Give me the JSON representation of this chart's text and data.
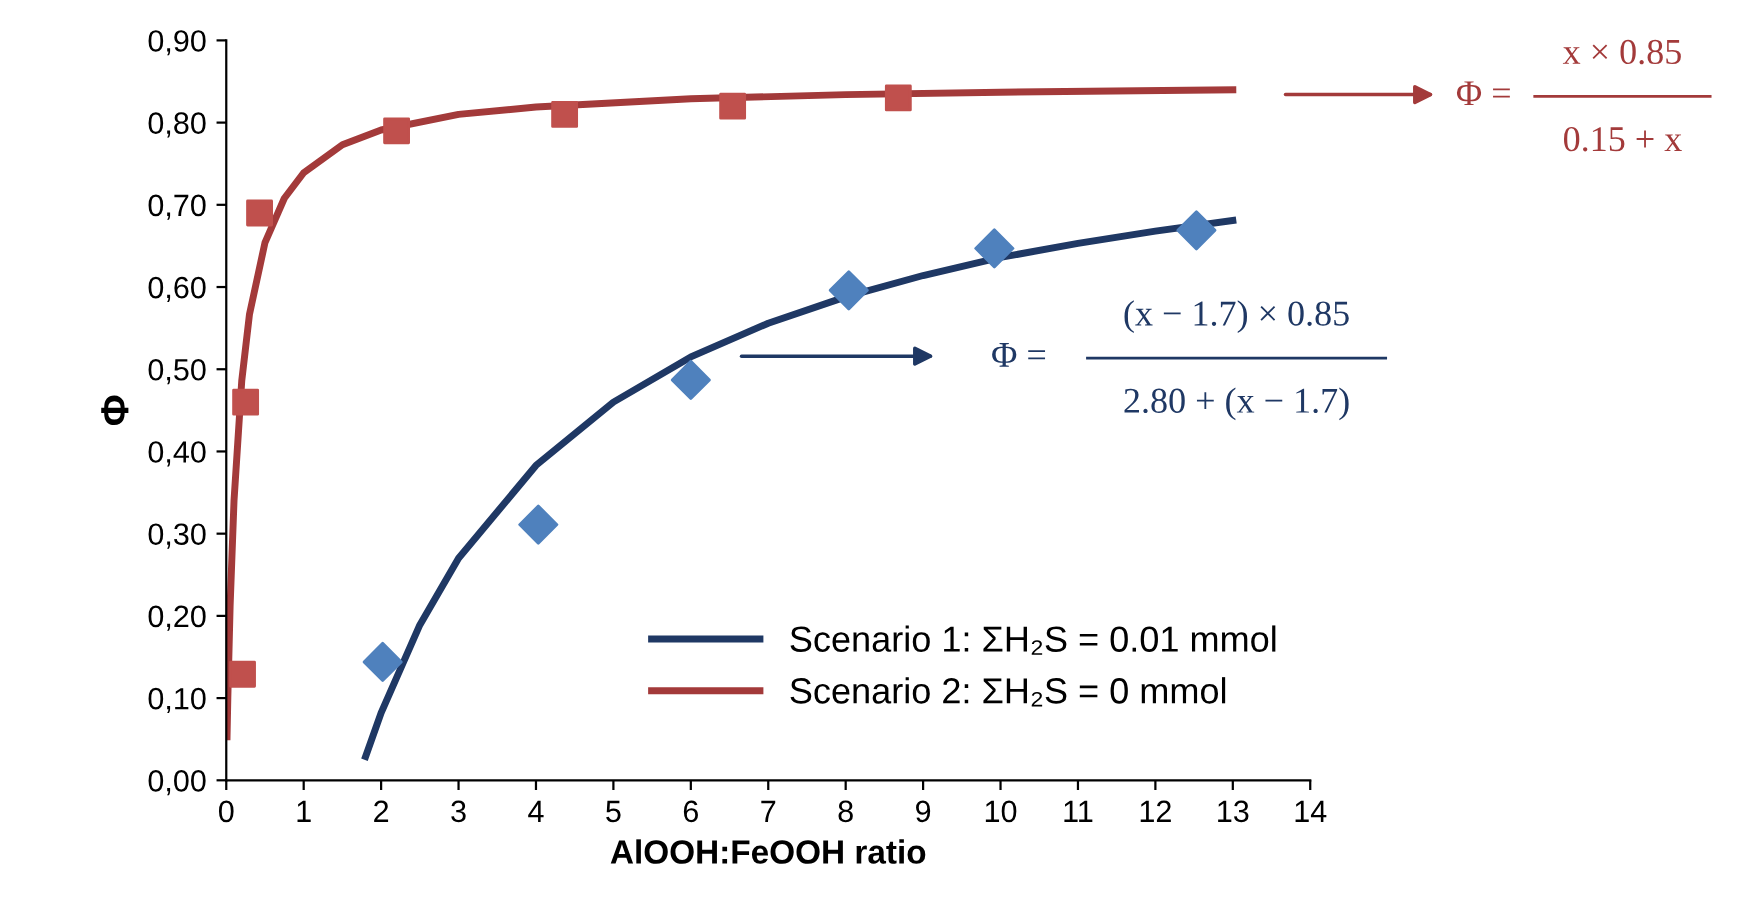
{
  "chart_data": {
    "type": "scatter",
    "xlabel": "AlOOH:FeOOH ratio",
    "ylabel": "Φ",
    "xlim": [
      0,
      14
    ],
    "xticks": [
      0,
      1,
      2,
      3,
      4,
      5,
      6,
      7,
      8,
      9,
      10,
      11,
      12,
      13,
      14
    ],
    "ylim": [
      0,
      0.9
    ],
    "yticks": [
      {
        "value": 0,
        "label": "0,00"
      },
      {
        "value": 0.1,
        "label": "0,10"
      },
      {
        "value": 0.2,
        "label": "0,20"
      },
      {
        "value": 0.3,
        "label": "0,30"
      },
      {
        "value": 0.4,
        "label": "0,40"
      },
      {
        "value": 0.5,
        "label": "0,50"
      },
      {
        "value": 0.6,
        "label": "0,60"
      },
      {
        "value": 0.7,
        "label": "0,70"
      },
      {
        "value": 0.8,
        "label": "0,80"
      },
      {
        "value": 0.9,
        "label": "0,90"
      }
    ],
    "grid": false,
    "legend": "lower right",
    "series": [
      {
        "type": "line",
        "name": "Scenario 1: ΣH₂S = 0.01 mmol",
        "color": "#1f3864",
        "marker": "none",
        "x": [
          1.8,
          2,
          2.5,
          3,
          4,
          5,
          6,
          7,
          8,
          9,
          10,
          11,
          12,
          13
        ],
        "values": [
          0.029,
          0.082,
          0.189,
          0.27,
          0.383,
          0.46,
          0.515,
          0.556,
          0.588,
          0.614,
          0.636,
          0.653,
          0.668,
          0.681
        ]
      },
      {
        "type": "line",
        "name": "Scenario 2: ΣH₂S = 0 mmol",
        "color": "#a33a3a",
        "marker": "none",
        "x": [
          0.01,
          0.02,
          0.05,
          0.1,
          0.2,
          0.3,
          0.5,
          0.75,
          1,
          1.5,
          2,
          3,
          4,
          6,
          8,
          10,
          13
        ],
        "values": [
          0.053,
          0.1,
          0.213,
          0.34,
          0.486,
          0.567,
          0.654,
          0.708,
          0.739,
          0.773,
          0.791,
          0.81,
          0.819,
          0.829,
          0.834,
          0.837,
          0.84
        ]
      },
      {
        "color": "#4f81bd",
        "marker": "diamond",
        "x": [
          2.02,
          4.03,
          6.0,
          8.04,
          9.92,
          12.53
        ],
        "values": [
          0.144,
          0.311,
          0.487,
          0.596,
          0.647,
          0.669
        ]
      },
      {
        "color": "#c0504d",
        "marker": "square",
        "x": [
          0.21,
          0.25,
          0.43,
          2.2,
          4.37,
          6.54,
          8.68
        ],
        "values": [
          0.129,
          0.46,
          0.69,
          0.79,
          0.81,
          0.82,
          0.83
        ]
      }
    ],
    "annotations": [
      "Φ =",
      "x × 0.85",
      "0.15 + x",
      "Φ =",
      "(x − 1.7) × 0.85",
      "2.80 + (x − 1.7)"
    ]
  }
}
